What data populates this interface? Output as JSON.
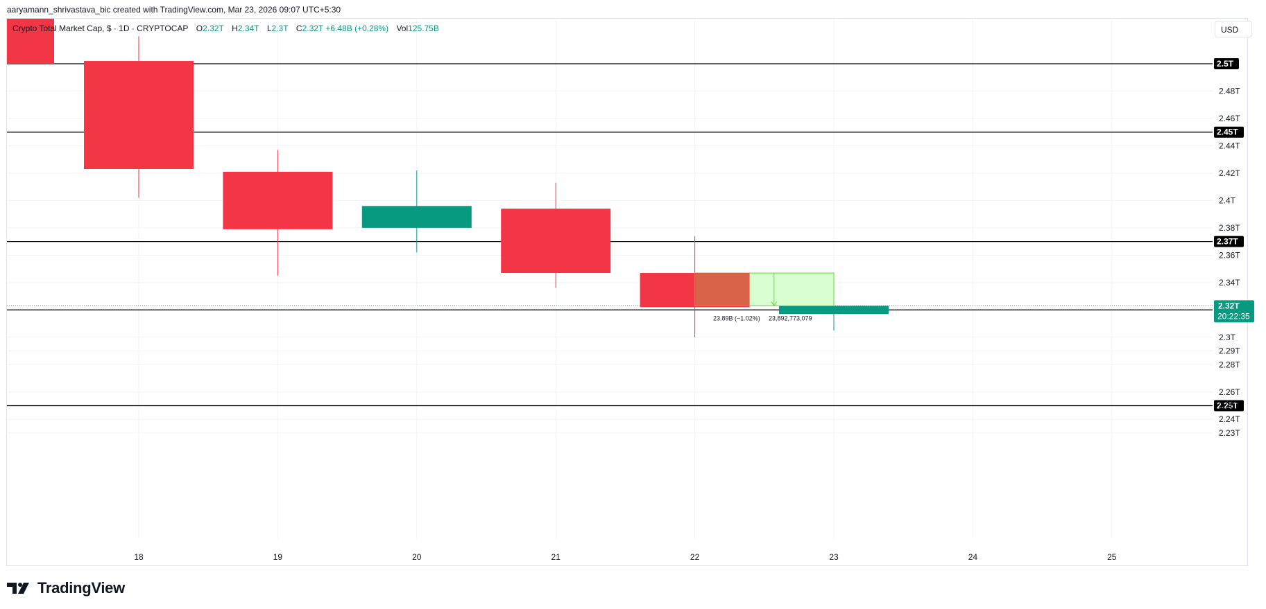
{
  "header": {
    "credit": "aaryamann_shrivastava_bic created with TradingView.com, Mar 23, 2026 09:07 UTC+5:30"
  },
  "legend": {
    "symbol": "Crypto Total Market Cap, $ · 1D · CRYPTOCAP",
    "o_label": "O",
    "o_value": "2.32T",
    "h_label": "H",
    "h_value": "2.34T",
    "l_label": "L",
    "l_value": "2.3T",
    "c_label": "C",
    "c_value": "2.32T",
    "change": "+6.48B (+0.28%)",
    "vol_label": "Vol",
    "vol_value": "125.75B"
  },
  "currency": "USD",
  "brand": "TradingView",
  "colors": {
    "up": "#089981",
    "down": "#f23645",
    "hline": "#000000",
    "grid": "#f0f3fa",
    "measure_fill": "#ccffc0",
    "measure_line": "#5fdc3f",
    "measure_overlap": "#d9583f"
  },
  "price_label": {
    "value": "2.32T",
    "countdown": "20:22:35"
  },
  "measure": {
    "text_left": "23.89B (−1.02%)",
    "text_right": "23,892,773,079"
  },
  "chart_data": {
    "type": "candlestick",
    "interval": "1D",
    "x_ticks": [
      "18",
      "19",
      "20",
      "21",
      "22",
      "23",
      "24",
      "25"
    ],
    "y_ticks": [
      "2.48T",
      "2.46T",
      "2.44T",
      "2.42T",
      "2.4T",
      "2.38T",
      "2.36T",
      "2.34T",
      "2.3T",
      "2.29T",
      "2.28T",
      "2.26T",
      "2.25T",
      "2.24T",
      "2.23T"
    ],
    "ylim": [
      2.22,
      2.52
    ],
    "candles": [
      {
        "day": 18,
        "open": 2.502,
        "high": 2.52,
        "low": 2.402,
        "close": 2.423
      },
      {
        "day": 19,
        "open": 2.421,
        "high": 2.437,
        "low": 2.345,
        "close": 2.379
      },
      {
        "day": 20,
        "open": 2.38,
        "high": 2.422,
        "low": 2.362,
        "close": 2.396
      },
      {
        "day": 21,
        "open": 2.394,
        "high": 2.413,
        "low": 2.336,
        "close": 2.347
      },
      {
        "day": 22,
        "open": 2.347,
        "high": 2.374,
        "low": 2.3,
        "close": 2.322
      },
      {
        "day": 23,
        "open": 2.317,
        "high": 2.338,
        "low": 2.305,
        "close": 2.323
      }
    ],
    "horizontal_levels": [
      {
        "value": 2.5,
        "label": "2.5T"
      },
      {
        "value": 2.45,
        "label": "2.45T"
      },
      {
        "value": 2.37,
        "label": "2.37T"
      },
      {
        "value": 2.32,
        "label": "2.32T"
      },
      {
        "value": 2.25,
        "label": "2.25T"
      }
    ],
    "last_price": 2.323,
    "measure_box": {
      "from_day": 22,
      "to_day": 23,
      "top": 2.347,
      "bottom": 2.323
    }
  }
}
